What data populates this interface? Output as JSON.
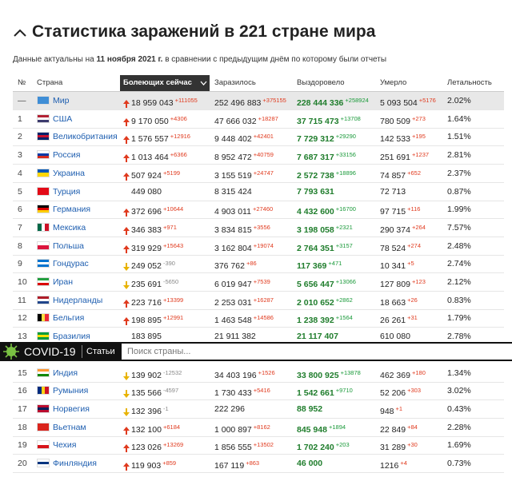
{
  "header": {
    "title": "Статистика заражений в 221 стране мира",
    "subtitle": [
      "Данные актуальны на",
      "11 ноября 2021 г.",
      "в сравнении с предыдущим днём по которому были отчеты"
    ]
  },
  "table": {
    "columns": [
      "№",
      "Страна",
      "Болеющих сейчас",
      "Заразилось",
      "Выздоровело",
      "Умерло",
      "Летальность"
    ],
    "rows": [
      {
        "n": "—",
        "country": "Мир",
        "active": {
          "v": "18 959 043",
          "d": "+111055"
        },
        "cases": {
          "v": "252 496 883",
          "d": "+375155"
        },
        "recovered": {
          "v": "228 444 336",
          "d": "+258924"
        },
        "deaths": {
          "v": "5 093 504",
          "d": "+5176"
        },
        "lethality": "2.02%"
      },
      {
        "n": "1",
        "country": "США",
        "active": {
          "v": "9 170 050",
          "d": "+4306"
        },
        "cases": {
          "v": "47 666 032",
          "d": "+18287"
        },
        "recovered": {
          "v": "37 715 473",
          "d": "+13708"
        },
        "deaths": {
          "v": "780 509",
          "d": "+273"
        },
        "lethality": "1.64%"
      },
      {
        "n": "2",
        "country": "Великобритания",
        "active": {
          "v": "1 576 557",
          "d": "+12916"
        },
        "cases": {
          "v": "9 448 402",
          "d": "+42401"
        },
        "recovered": {
          "v": "7 729 312",
          "d": "+29290"
        },
        "deaths": {
          "v": "142 533",
          "d": "+195"
        },
        "lethality": "1.51%"
      },
      {
        "n": "3",
        "country": "Россия",
        "active": {
          "v": "1 013 464",
          "d": "+6366"
        },
        "cases": {
          "v": "8 952 472",
          "d": "+40759"
        },
        "recovered": {
          "v": "7 687 317",
          "d": "+33156"
        },
        "deaths": {
          "v": "251 691",
          "d": "+1237"
        },
        "lethality": "2.81%"
      },
      {
        "n": "4",
        "country": "Украина",
        "active": {
          "v": "507 924",
          "d": "+5199"
        },
        "cases": {
          "v": "3 155 519",
          "d": "+24747"
        },
        "recovered": {
          "v": "2 572 738",
          "d": "+18896"
        },
        "deaths": {
          "v": "74 857",
          "d": "+652"
        },
        "lethality": "2.37%"
      },
      {
        "n": "5",
        "country": "Турция",
        "active": {
          "v": "449 080"
        },
        "cases": {
          "v": "8 315 424"
        },
        "recovered": {
          "v": "7 793 631"
        },
        "deaths": {
          "v": "72 713"
        },
        "lethality": "0.87%"
      },
      {
        "n": "6",
        "country": "Германия",
        "active": {
          "v": "372 696",
          "d": "+10644"
        },
        "cases": {
          "v": "4 903 011",
          "d": "+27460"
        },
        "recovered": {
          "v": "4 432 600",
          "d": "+16700"
        },
        "deaths": {
          "v": "97 715",
          "d": "+116"
        },
        "lethality": "1.99%"
      },
      {
        "n": "7",
        "country": "Мексика",
        "active": {
          "v": "346 383",
          "d": "+971"
        },
        "cases": {
          "v": "3 834 815",
          "d": "+3556"
        },
        "recovered": {
          "v": "3 198 058",
          "d": "+2321"
        },
        "deaths": {
          "v": "290 374",
          "d": "+264"
        },
        "lethality": "7.57%"
      },
      {
        "n": "8",
        "country": "Польша",
        "active": {
          "v": "319 929",
          "d": "+15643"
        },
        "cases": {
          "v": "3 162 804",
          "d": "+19074"
        },
        "recovered": {
          "v": "2 764 351",
          "d": "+3157"
        },
        "deaths": {
          "v": "78 524",
          "d": "+274"
        },
        "lethality": "2.48%"
      },
      {
        "n": "9",
        "country": "Гондурас",
        "active": {
          "v": "249 052",
          "d": "-390"
        },
        "cases": {
          "v": "376 762",
          "d": "+86"
        },
        "recovered": {
          "v": "117 369",
          "d": "+471"
        },
        "deaths": {
          "v": "10 341",
          "d": "+5"
        },
        "lethality": "2.74%"
      },
      {
        "n": "10",
        "country": "Иран",
        "active": {
          "v": "235 691",
          "d": "-5650"
        },
        "cases": {
          "v": "6 019 947",
          "d": "+7539"
        },
        "recovered": {
          "v": "5 656 447",
          "d": "+13066"
        },
        "deaths": {
          "v": "127 809",
          "d": "+123"
        },
        "lethality": "2.12%"
      },
      {
        "n": "11",
        "country": "Нидерланды",
        "active": {
          "v": "223 716",
          "d": "+13399"
        },
        "cases": {
          "v": "2 253 031",
          "d": "+16287"
        },
        "recovered": {
          "v": "2 010 652",
          "d": "+2862"
        },
        "deaths": {
          "v": "18 663",
          "d": "+26"
        },
        "lethality": "0.83%"
      },
      {
        "n": "12",
        "country": "Бельгия",
        "active": {
          "v": "198 895",
          "d": "+12991"
        },
        "cases": {
          "v": "1 463 548",
          "d": "+14586"
        },
        "recovered": {
          "v": "1 238 392",
          "d": "+1564"
        },
        "deaths": {
          "v": "26 261",
          "d": "+31"
        },
        "lethality": "1.79%"
      },
      {
        "n": "13",
        "country": "Бразилия",
        "active": {
          "v": "183 895"
        },
        "cases": {
          "v": "21 911 382"
        },
        "recovered": {
          "v": "21 117 407"
        },
        "deaths": {
          "v": "610 080"
        },
        "lethality": "2.78%"
      },
      {
        "n": "15",
        "country": "Индия",
        "active": {
          "v": "139 902",
          "d": "-12532"
        },
        "cases": {
          "v": "34 403 196",
          "d": "+1526"
        },
        "recovered": {
          "v": "33 800 925",
          "d": "+13878"
        },
        "deaths": {
          "v": "462 369",
          "d": "+180"
        },
        "lethality": "1.34%"
      },
      {
        "n": "16",
        "country": "Румыния",
        "active": {
          "v": "135 566",
          "d": "-4597"
        },
        "cases": {
          "v": "1 730 433",
          "d": "+5416"
        },
        "recovered": {
          "v": "1 542 661",
          "d": "+9710"
        },
        "deaths": {
          "v": "52 206",
          "d": "+303"
        },
        "lethality": "3.02%"
      },
      {
        "n": "17",
        "country": "Норвегия",
        "active": {
          "v": "132 396",
          "d": "-1"
        },
        "cases": {
          "v": "222 296"
        },
        "recovered": {
          "v": "88 952"
        },
        "deaths": {
          "v": "948",
          "d": "+1"
        },
        "lethality": "0.43%"
      },
      {
        "n": "18",
        "country": "Вьетнам",
        "active": {
          "v": "132 100",
          "d": "+6184"
        },
        "cases": {
          "v": "1 000 897",
          "d": "+8162"
        },
        "recovered": {
          "v": "845 948",
          "d": "+1894"
        },
        "deaths": {
          "v": "22 849",
          "d": "+84"
        },
        "lethality": "2.28%"
      },
      {
        "n": "19",
        "country": "Чехия",
        "active": {
          "v": "123 026",
          "d": "+13269"
        },
        "cases": {
          "v": "1 856 555",
          "d": "+13502"
        },
        "recovered": {
          "v": "1 702 240",
          "d": "+203"
        },
        "deaths": {
          "v": "31 289",
          "d": "+30"
        },
        "lethality": "1.69%"
      },
      {
        "n": "20",
        "country": "Финляндия",
        "active": {
          "v": "119 903",
          "d": "+859"
        },
        "cases": {
          "v": "167 119",
          "d": "+863"
        },
        "recovered": {
          "v": "46 000"
        },
        "deaths": {
          "v": "1216",
          "d": "+4"
        },
        "lethality": "0.73%"
      }
    ]
  },
  "nav": {
    "brand": "COVID-19",
    "link": "Статьи",
    "search": "Поиск страны..."
  }
}
